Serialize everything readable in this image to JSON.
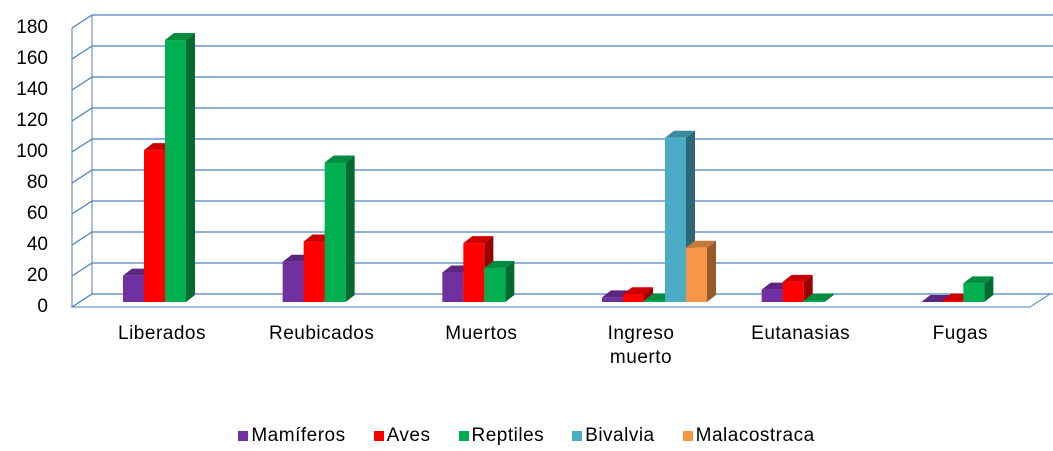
{
  "chart_data": {
    "type": "bar3d",
    "categories": [
      "Liberados",
      "Reubicados",
      "Muertos",
      "Ingreso muerto",
      "Eutanasias",
      "Fugas"
    ],
    "series": [
      {
        "name": "Mamíferos",
        "color": "#7030a0",
        "values": [
          17,
          26,
          19,
          3,
          8,
          0
        ]
      },
      {
        "name": "Aves",
        "color": "#ff0000",
        "values": [
          98,
          39,
          38,
          5,
          13,
          1
        ]
      },
      {
        "name": "Reptiles",
        "color": "#00b050",
        "values": [
          169,
          90,
          22,
          1,
          1,
          12
        ]
      },
      {
        "name": "Bivalvia",
        "color": "#4bacc6",
        "values": [
          null,
          null,
          null,
          106,
          null,
          null
        ]
      },
      {
        "name": "Malacostraca",
        "color": "#f79646",
        "values": [
          null,
          null,
          null,
          35,
          null,
          null
        ]
      }
    ],
    "ylim": [
      0,
      180
    ],
    "yticks": [
      0,
      20,
      40,
      60,
      80,
      100,
      120,
      140,
      160,
      180
    ],
    "grid": true
  }
}
